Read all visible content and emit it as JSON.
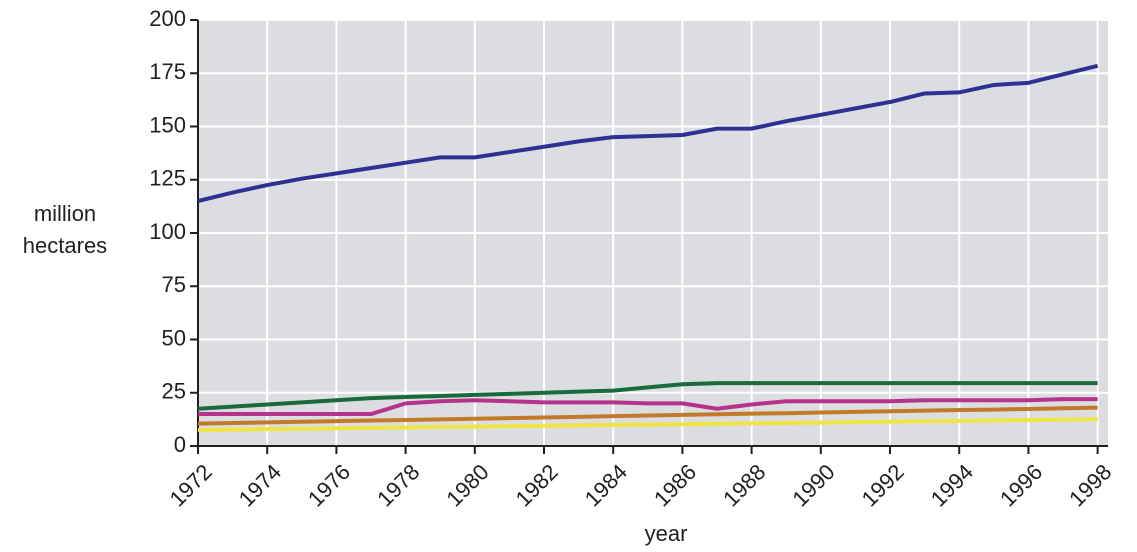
{
  "chart_data": {
    "type": "line",
    "xlabel": "year",
    "ylabel": "million hectares",
    "x": [
      1972,
      1973,
      1974,
      1975,
      1976,
      1977,
      1978,
      1979,
      1980,
      1981,
      1982,
      1983,
      1984,
      1985,
      1986,
      1987,
      1988,
      1989,
      1990,
      1991,
      1992,
      1993,
      1994,
      1995,
      1996,
      1997,
      1998
    ],
    "series": [
      {
        "color": "#2e3192",
        "values": [
          115,
          119,
          122.5,
          125.5,
          128,
          130.5,
          133,
          135.5,
          135.5,
          138,
          140.5,
          143,
          145,
          145.5,
          146,
          149,
          149,
          152.5,
          155.5,
          158.5,
          161.5,
          165.5,
          166,
          169.5,
          170.5,
          174.5,
          178.5
        ]
      },
      {
        "color": "#1a6b3c",
        "values": [
          17.5,
          18.5,
          19.5,
          20.5,
          21.5,
          22.5,
          23,
          23.5,
          24,
          24.5,
          25,
          25.5,
          26,
          27.5,
          29,
          29.5,
          29.5,
          29.5,
          29.5,
          29.5,
          29.5,
          29.5,
          29.5,
          29.5,
          29.5,
          29.5,
          29.5
        ]
      },
      {
        "color": "#b5338a",
        "values": [
          15,
          15,
          15,
          15,
          15,
          15,
          20,
          21,
          21.5,
          21,
          20.5,
          20.5,
          20.5,
          20,
          20,
          17.5,
          19.5,
          21,
          21,
          21,
          21,
          21.5,
          21.5,
          21.5,
          21.5,
          22,
          22
        ]
      },
      {
        "color": "#c27a2a",
        "values": [
          10.5,
          10.8,
          11.1,
          11.4,
          11.7,
          12,
          12.2,
          12.5,
          12.8,
          13.1,
          13.4,
          13.7,
          14,
          14.3,
          14.6,
          14.9,
          15.2,
          15.4,
          15.7,
          16,
          16.3,
          16.6,
          16.9,
          17.1,
          17.4,
          17.7,
          18
        ]
      },
      {
        "color": "#f0e442",
        "values": [
          7.5,
          7.7,
          7.9,
          8.1,
          8.3,
          8.5,
          8.7,
          8.9,
          9.1,
          9.3,
          9.5,
          9.7,
          9.9,
          10,
          10.2,
          10.4,
          10.6,
          10.8,
          11,
          11.2,
          11.4,
          11.6,
          11.8,
          12,
          12.2,
          12.4,
          12.6
        ]
      }
    ],
    "xlim": [
      1972,
      1998.3
    ],
    "xticks": [
      1972,
      1974,
      1976,
      1978,
      1980,
      1982,
      1984,
      1986,
      1988,
      1990,
      1992,
      1994,
      1996,
      1998
    ],
    "ylim": [
      0,
      200
    ],
    "yticks": [
      0,
      25,
      50,
      75,
      100,
      125,
      150,
      175,
      200
    ],
    "grid": true,
    "background": "#dcdde0"
  }
}
